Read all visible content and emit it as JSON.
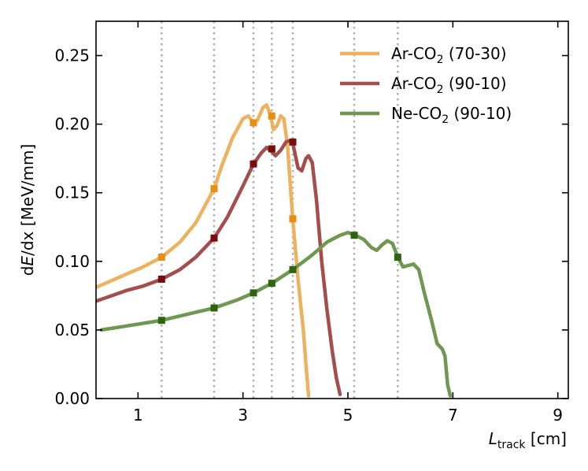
{
  "chart_data": {
    "type": "line",
    "xlim": [
      0.2,
      9.2
    ],
    "ylim": [
      0.0,
      0.275
    ],
    "x_ticks": [
      1,
      3,
      5,
      7,
      9
    ],
    "x_tick_labels": [
      "1",
      "3",
      "5",
      "7",
      "9"
    ],
    "y_ticks": [
      0.0,
      0.05,
      0.1,
      0.15,
      0.2,
      0.25
    ],
    "y_tick_labels": [
      "0.00",
      "0.05",
      "0.10",
      "0.15",
      "0.20",
      "0.25"
    ],
    "xlabel": {
      "main": "L",
      "sub": "track",
      "unit": " [cm]"
    },
    "ylabel": {
      "pre": "d",
      "italic": "E",
      "post": "/dx [MeV/mm]"
    },
    "vertical_dashed_lines_x": [
      1.45,
      2.45,
      3.2,
      3.55,
      3.95,
      5.12,
      5.95
    ],
    "legend_position": "top-right",
    "series": [
      {
        "name": "Ar-CO",
        "name_sub": "2",
        "name_suffix": " (70-30)",
        "color": "#EDB260",
        "points": [
          [
            0.2,
            0.081
          ],
          [
            0.5,
            0.086
          ],
          [
            0.8,
            0.091
          ],
          [
            1.1,
            0.096
          ],
          [
            1.45,
            0.103
          ],
          [
            1.8,
            0.114
          ],
          [
            2.1,
            0.128
          ],
          [
            2.45,
            0.153
          ],
          [
            2.6,
            0.17
          ],
          [
            2.8,
            0.19
          ],
          [
            3.0,
            0.204
          ],
          [
            3.1,
            0.206
          ],
          [
            3.2,
            0.201
          ],
          [
            3.28,
            0.203
          ],
          [
            3.38,
            0.212
          ],
          [
            3.45,
            0.214
          ],
          [
            3.52,
            0.207
          ],
          [
            3.58,
            0.196
          ],
          [
            3.65,
            0.199
          ],
          [
            3.72,
            0.206
          ],
          [
            3.78,
            0.204
          ],
          [
            3.85,
            0.184
          ],
          [
            3.95,
            0.13
          ],
          [
            4.05,
            0.087
          ],
          [
            4.1,
            0.068
          ],
          [
            4.15,
            0.05
          ],
          [
            4.2,
            0.025
          ],
          [
            4.25,
            0.002
          ]
        ],
        "markers": [
          [
            1.45,
            0.103
          ],
          [
            2.45,
            0.153
          ],
          [
            3.2,
            0.201
          ],
          [
            3.55,
            0.206
          ],
          [
            3.95,
            0.131
          ]
        ]
      },
      {
        "name": "Ar-CO",
        "name_sub": "2",
        "name_suffix": " (90-10)",
        "color": "#A34E4C",
        "points": [
          [
            0.2,
            0.071
          ],
          [
            0.5,
            0.075
          ],
          [
            0.8,
            0.079
          ],
          [
            1.1,
            0.082
          ],
          [
            1.45,
            0.087
          ],
          [
            1.8,
            0.094
          ],
          [
            2.1,
            0.103
          ],
          [
            2.45,
            0.117
          ],
          [
            2.7,
            0.132
          ],
          [
            3.0,
            0.155
          ],
          [
            3.2,
            0.171
          ],
          [
            3.35,
            0.179
          ],
          [
            3.45,
            0.183
          ],
          [
            3.55,
            0.18
          ],
          [
            3.62,
            0.177
          ],
          [
            3.72,
            0.181
          ],
          [
            3.82,
            0.187
          ],
          [
            3.9,
            0.188
          ],
          [
            3.95,
            0.186
          ],
          [
            4.05,
            0.168
          ],
          [
            4.12,
            0.166
          ],
          [
            4.2,
            0.175
          ],
          [
            4.25,
            0.177
          ],
          [
            4.32,
            0.172
          ],
          [
            4.4,
            0.145
          ],
          [
            4.5,
            0.1
          ],
          [
            4.6,
            0.065
          ],
          [
            4.7,
            0.035
          ],
          [
            4.78,
            0.015
          ],
          [
            4.85,
            0.003
          ]
        ],
        "markers": [
          [
            1.45,
            0.087
          ],
          [
            2.45,
            0.117
          ],
          [
            3.2,
            0.171
          ],
          [
            3.55,
            0.182
          ],
          [
            3.95,
            0.187
          ]
        ]
      },
      {
        "name": "Ne-CO",
        "name_sub": "2",
        "name_suffix": " (90-10)",
        "color": "#6E9850",
        "points": [
          [
            0.3,
            0.05
          ],
          [
            0.8,
            0.053
          ],
          [
            1.45,
            0.057
          ],
          [
            2.0,
            0.062
          ],
          [
            2.45,
            0.066
          ],
          [
            2.9,
            0.072
          ],
          [
            3.2,
            0.077
          ],
          [
            3.55,
            0.084
          ],
          [
            3.95,
            0.094
          ],
          [
            4.3,
            0.104
          ],
          [
            4.6,
            0.114
          ],
          [
            4.85,
            0.119
          ],
          [
            5.0,
            0.121
          ],
          [
            5.15,
            0.119
          ],
          [
            5.3,
            0.116
          ],
          [
            5.45,
            0.11
          ],
          [
            5.55,
            0.108
          ],
          [
            5.65,
            0.112
          ],
          [
            5.75,
            0.115
          ],
          [
            5.85,
            0.113
          ],
          [
            5.95,
            0.103
          ],
          [
            6.05,
            0.096
          ],
          [
            6.15,
            0.097
          ],
          [
            6.25,
            0.098
          ],
          [
            6.35,
            0.094
          ],
          [
            6.45,
            0.078
          ],
          [
            6.6,
            0.056
          ],
          [
            6.7,
            0.04
          ],
          [
            6.8,
            0.036
          ],
          [
            6.85,
            0.031
          ],
          [
            6.9,
            0.01
          ],
          [
            6.95,
            0.002
          ]
        ],
        "markers": [
          [
            1.45,
            0.057
          ],
          [
            2.45,
            0.066
          ],
          [
            3.2,
            0.077
          ],
          [
            3.55,
            0.084
          ],
          [
            3.95,
            0.094
          ],
          [
            5.12,
            0.119
          ],
          [
            5.95,
            0.103
          ]
        ]
      }
    ]
  }
}
